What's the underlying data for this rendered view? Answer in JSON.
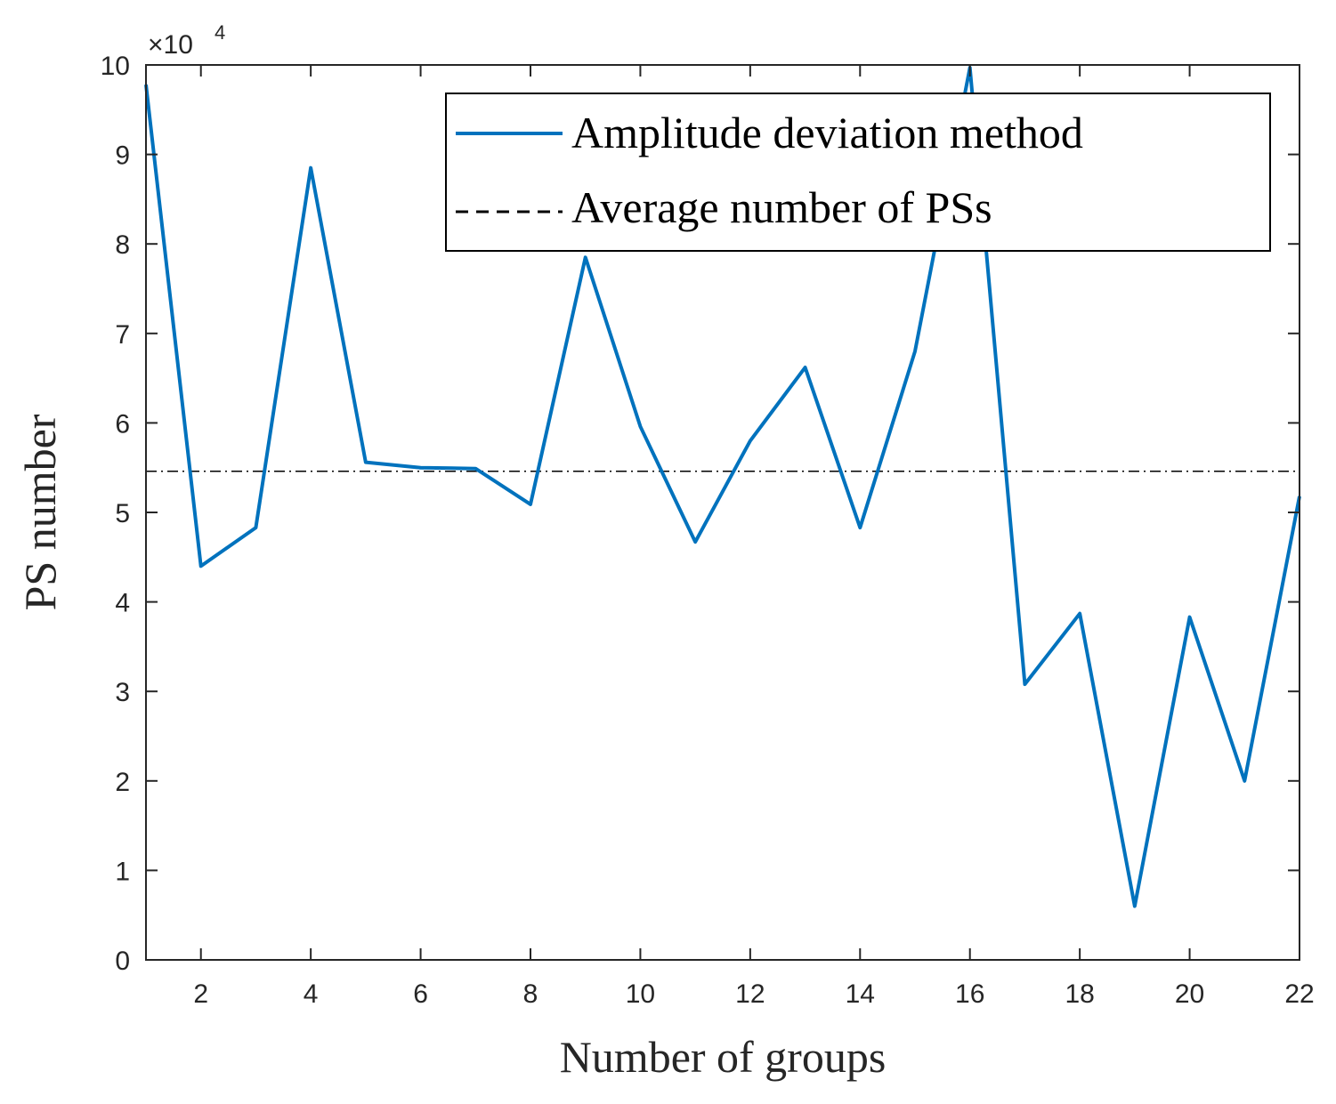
{
  "chart_data": {
    "type": "line",
    "title": "",
    "xlabel": "Number of groups",
    "ylabel": "PS number",
    "xlim": [
      1,
      22
    ],
    "ylim": [
      0,
      100000
    ],
    "x_ticks": [
      2,
      4,
      6,
      8,
      10,
      12,
      14,
      16,
      18,
      20,
      22
    ],
    "y_ticks": [
      0,
      1,
      2,
      3,
      4,
      5,
      6,
      7,
      8,
      9,
      10
    ],
    "y_exponent_label": "×10",
    "y_exponent_power": "4",
    "legend_position": "top-right",
    "x": [
      1,
      2,
      3,
      4,
      5,
      6,
      7,
      8,
      9,
      10,
      11,
      12,
      13,
      14,
      15,
      16,
      17,
      18,
      19,
      20,
      21,
      22
    ],
    "series": [
      {
        "name": "Amplitude deviation method",
        "color": "#0072bd",
        "style": "solid",
        "values": [
          97800,
          44000,
          48300,
          88500,
          55600,
          55000,
          54900,
          50900,
          78500,
          59600,
          46700,
          58000,
          66200,
          48300,
          68000,
          99700,
          30800,
          38700,
          6000,
          38300,
          20000,
          51800
        ]
      },
      {
        "name": "Average number of PSs",
        "color": "#000000",
        "style": "dashed",
        "value": 54600
      }
    ]
  }
}
